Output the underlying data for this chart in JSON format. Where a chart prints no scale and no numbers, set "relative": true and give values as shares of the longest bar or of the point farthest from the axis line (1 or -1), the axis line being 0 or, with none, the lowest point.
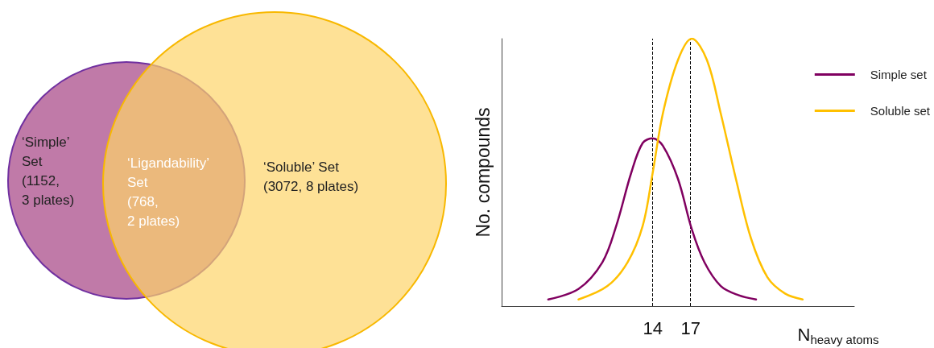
{
  "chart_data": [
    {
      "type": "other",
      "annotations": [
        "‘Simple’\nSet\n(1152,\n3 plates)",
        "‘Ligandability’\nSet\n(768,\n2 plates)",
        "‘Soluble’ Set\n(3072, 8 plates)"
      ]
    },
    {
      "type": "line",
      "relative": true,
      "xlabel": "N$_{heavy atoms}$",
      "ylabel": "No. compounds",
      "xlim": [
        2,
        30
      ],
      "xticks": [
        14,
        17
      ],
      "tick_labels": "x",
      "grid": false,
      "legend": "top right",
      "marker": "none",
      "line_style": "solid",
      "ref_lines": [
        {
          "axis": "x",
          "value": 14,
          "color": "#000000",
          "line_style": "dashed"
        },
        {
          "axis": "x",
          "value": 17,
          "color": "#000000",
          "line_style": "dashed"
        }
      ],
      "series": [
        {
          "name": "Simple set",
          "color": "#800060",
          "x": [
            5.7,
            8.1,
            10.0,
            11.1,
            12.3,
            13.2,
            14.0,
            14.8,
            16.0,
            17.1,
            18.1,
            19.4,
            20.8,
            22.2
          ],
          "values": [
            0.025,
            0.064,
            0.164,
            0.3,
            0.5,
            0.61,
            0.627,
            0.6,
            0.476,
            0.287,
            0.164,
            0.075,
            0.041,
            0.025
          ]
        },
        {
          "name": "Soluble set",
          "color": "#ffc000",
          "x": [
            8.1,
            10.4,
            12.0,
            13.2,
            14.0,
            14.8,
            16.0,
            17.1,
            18.3,
            19.4,
            20.6,
            21.8,
            23.1,
            24.5,
            25.9
          ],
          "values": [
            0.025,
            0.075,
            0.164,
            0.3,
            0.5,
            0.72,
            0.92,
            1.0,
            0.92,
            0.72,
            0.476,
            0.253,
            0.108,
            0.047,
            0.025
          ]
        }
      ]
    }
  ]
}
